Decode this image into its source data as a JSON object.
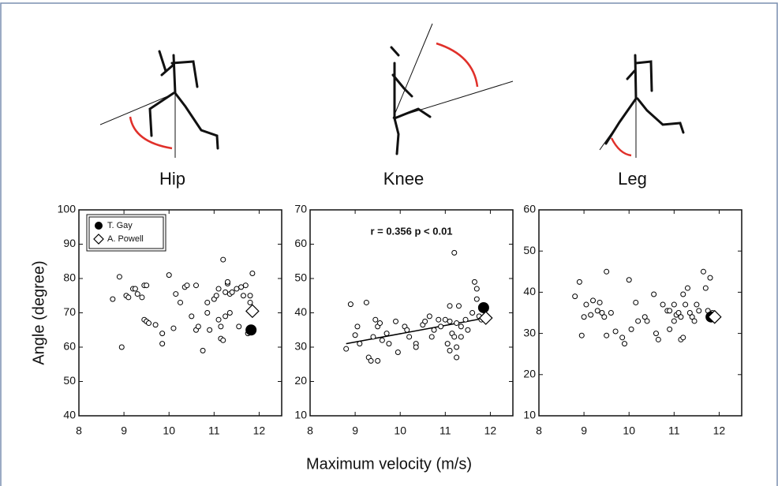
{
  "xlabel": "Maximum velocity (m/s)",
  "chart_data": [
    {
      "type": "scatter",
      "title": "Hip",
      "ylabel": "Angle (degree)",
      "color": "#000",
      "x": [
        8.75,
        8.9,
        8.95,
        9.05,
        9.1,
        9.2,
        9.25,
        9.3,
        9.4,
        9.45,
        9.5,
        9.45,
        9.5,
        9.55,
        9.7,
        9.85,
        9.85,
        10.0,
        10.1,
        10.15,
        10.25,
        10.35,
        10.4,
        10.5,
        10.6,
        10.6,
        10.65,
        10.75,
        10.85,
        10.85,
        10.9,
        11.0,
        11.05,
        11.1,
        11.1,
        11.15,
        11.15,
        11.2,
        11.2,
        11.25,
        11.25,
        11.3,
        11.3,
        11.35,
        11.35,
        11.4,
        11.5,
        11.55,
        11.6,
        11.65,
        11.7,
        11.75,
        11.8,
        11.85,
        11.8
      ],
      "values": [
        74,
        80.5,
        60,
        75,
        74.5,
        77,
        77,
        75.5,
        74.5,
        78,
        78,
        68,
        67.5,
        67,
        66.5,
        64,
        61,
        81,
        65.5,
        75.5,
        73,
        77.5,
        78,
        69,
        78,
        65,
        66,
        59,
        73,
        70,
        65,
        74,
        75,
        68,
        77,
        66,
        62.5,
        62,
        85.5,
        76,
        69,
        78.5,
        79,
        70,
        75.5,
        76,
        77,
        66,
        77.5,
        75,
        78,
        64,
        73,
        81.5,
        75
      ],
      "series": [
        {
          "name": "T. Gay",
          "marker": "circle",
          "x": [
            11.82
          ],
          "values": [
            65
          ]
        },
        {
          "name": "A. Powell",
          "marker": "diamond",
          "x": [
            11.85
          ],
          "values": [
            70.5
          ]
        }
      ],
      "xlim": [
        8,
        12.5
      ],
      "xticks": [
        8,
        9,
        10,
        11,
        12
      ],
      "ylim": [
        40,
        100
      ],
      "yticks": [
        40,
        50,
        60,
        70,
        80,
        90,
        100
      ]
    },
    {
      "type": "scatter",
      "title": "Knee",
      "annotation": "r = 0.356  p < 0.01",
      "color": "#000",
      "x": [
        8.8,
        8.9,
        9.0,
        9.05,
        9.1,
        9.25,
        9.3,
        9.35,
        9.4,
        9.45,
        9.5,
        9.5,
        9.55,
        9.6,
        9.7,
        9.75,
        9.9,
        9.95,
        10.1,
        10.15,
        10.2,
        10.35,
        10.35,
        10.5,
        10.55,
        10.65,
        10.7,
        10.75,
        10.85,
        10.9,
        11.0,
        11.05,
        11.1,
        11.1,
        11.1,
        11.15,
        11.2,
        11.2,
        11.25,
        11.25,
        11.25,
        11.3,
        11.35,
        11.35,
        11.45,
        11.5,
        11.6,
        11.65,
        11.7,
        11.7,
        11.75,
        11.8,
        11.85
      ],
      "values": [
        29.5,
        42.5,
        33.5,
        36,
        31,
        43,
        27,
        26,
        33,
        38,
        36,
        26,
        37,
        32,
        34,
        31,
        37.5,
        28.5,
        36,
        35,
        33,
        31,
        30,
        36.5,
        37.5,
        39,
        33,
        35,
        38,
        36,
        38,
        31,
        42,
        29,
        37.5,
        34,
        57.5,
        33,
        37,
        30,
        27,
        42,
        36,
        33,
        38,
        35,
        40,
        49,
        44,
        47,
        39,
        38,
        41
      ],
      "fit": {
        "x": [
          8.8,
          11.9
        ],
        "values": [
          31,
          38.5
        ]
      },
      "series": [
        {
          "name": "T. Gay",
          "marker": "circle",
          "x": [
            11.85
          ],
          "values": [
            41.5
          ]
        },
        {
          "name": "A. Powell",
          "marker": "diamond",
          "x": [
            11.9
          ],
          "values": [
            38.5
          ]
        }
      ],
      "xlim": [
        8,
        12.5
      ],
      "xticks": [
        8,
        9,
        10,
        11,
        12
      ],
      "ylim": [
        10,
        70
      ],
      "yticks": [
        10,
        20,
        30,
        40,
        50,
        60,
        70
      ]
    },
    {
      "type": "scatter",
      "title": "Leg",
      "color": "#000",
      "x": [
        8.8,
        8.9,
        8.95,
        9.0,
        9.05,
        9.15,
        9.2,
        9.3,
        9.35,
        9.4,
        9.45,
        9.5,
        9.5,
        9.6,
        9.7,
        9.85,
        9.9,
        10.0,
        10.05,
        10.15,
        10.2,
        10.35,
        10.4,
        10.55,
        10.6,
        10.65,
        10.75,
        10.85,
        10.9,
        10.9,
        11.0,
        11.0,
        11.05,
        11.1,
        11.15,
        11.15,
        11.2,
        11.2,
        11.25,
        11.3,
        11.35,
        11.4,
        11.45,
        11.5,
        11.55,
        11.65,
        11.7,
        11.75,
        11.8,
        11.85
      ],
      "values": [
        39,
        42.5,
        29.5,
        34,
        37,
        34.5,
        38,
        35.5,
        37.5,
        35,
        34,
        45,
        29.5,
        35,
        30.5,
        29,
        27.5,
        43,
        31,
        37.5,
        33,
        34,
        33,
        39.5,
        30,
        28.5,
        37,
        35.5,
        35.5,
        31,
        37,
        33,
        34.5,
        35,
        34,
        28.5,
        39.5,
        29,
        37,
        41,
        35,
        34,
        33,
        37,
        35.5,
        45,
        41,
        35.5,
        43.5,
        35
      ],
      "series": [
        {
          "name": "T. Gay",
          "marker": "circle",
          "x": [
            11.82
          ],
          "values": [
            34
          ]
        },
        {
          "name": "A. Powell",
          "marker": "diamond",
          "x": [
            11.9
          ],
          "values": [
            34
          ]
        }
      ],
      "xlim": [
        8,
        12.5
      ],
      "xticks": [
        8,
        9,
        10,
        11,
        12
      ],
      "ylim": [
        10,
        60
      ],
      "yticks": [
        10,
        20,
        30,
        40,
        50,
        60
      ]
    }
  ]
}
